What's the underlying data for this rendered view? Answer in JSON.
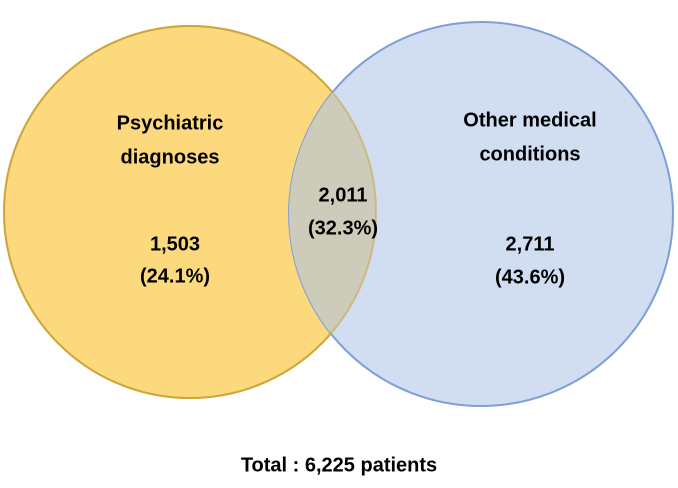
{
  "sets": [
    {
      "label_lines": [
        "Psychiatric",
        "diagnoses"
      ],
      "count": "1,503",
      "percent": "(24.1%)"
    },
    {
      "label_lines": [
        "Other medical",
        "conditions"
      ],
      "count": "2,711",
      "percent": "(43.6%)"
    }
  ],
  "intersection": {
    "count": "2,011",
    "percent": "(32.3%)"
  },
  "footer": "Total : 6,225 patients"
}
